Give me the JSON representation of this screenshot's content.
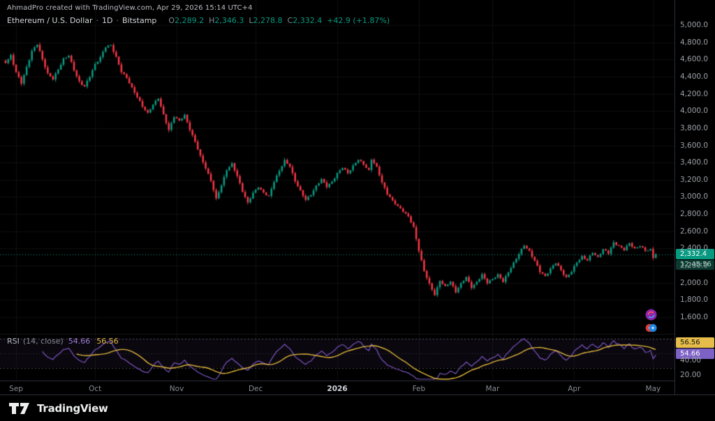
{
  "attribution": "AhmadPro created with TradingView.com, Apr 29, 2026 15:14 UTC+4",
  "symbol_bar": {
    "title": "Ethereum / U.S. Dollar",
    "separator": "·",
    "interval": "1D",
    "exchange": "Bitstamp",
    "ohlc": {
      "o_label": "O",
      "o": "2,289.2",
      "h_label": "H",
      "h": "2,346.3",
      "l_label": "L",
      "l": "2,278.8",
      "c_label": "C",
      "c": "2,332.4"
    },
    "change": "+42.9 (+1.87%)"
  },
  "price_scale": {
    "badge_price": "2,332.4",
    "countdown": "12:45:56",
    "tick_values": [
      5000,
      4800,
      4600,
      4400,
      4200,
      4000,
      3800,
      3600,
      3400,
      3200,
      3000,
      2800,
      2600,
      2400,
      2200,
      2000,
      1800,
      1600
    ]
  },
  "time_scale": {
    "ticks": [
      {
        "label": "Sep",
        "day": 0
      },
      {
        "label": "Oct",
        "day": 30
      },
      {
        "label": "Nov",
        "day": 61
      },
      {
        "label": "Dec",
        "day": 91
      },
      {
        "label": "2026",
        "day": 122,
        "year": true
      },
      {
        "label": "Feb",
        "day": 153
      },
      {
        "label": "Mar",
        "day": 181
      },
      {
        "label": "Apr",
        "day": 212
      },
      {
        "label": "May",
        "day": 242
      }
    ]
  },
  "rsi_pane": {
    "name": "RSI",
    "params": "(14, close)",
    "rsi_value": "54.66",
    "ma_value": "56.56",
    "badge_ma": "56.56",
    "badge_rsi": "54.66",
    "axis_ticks": [
      {
        "label": "40.00",
        "value": 40
      },
      {
        "label": "20.00",
        "value": 20
      }
    ],
    "levels": {
      "upper": 70,
      "middle": 50,
      "lower": 30
    }
  },
  "footer": {
    "brand": "TradingView"
  },
  "colors": {
    "up": "#089981",
    "down": "#F23645",
    "rsi_line": "#7E57C2",
    "rsi_ma": "#E2B93B",
    "grid": "rgba(255,255,255,0.055)",
    "band_fill": "rgba(126,87,194,0.08)",
    "band_line": "rgba(150,153,163,0.5)"
  },
  "chart_data": {
    "type": "candlestick",
    "title": "Ethereum / U.S. Dollar",
    "interval": "1D",
    "exchange": "Bitstamp",
    "visible_price_range": [
      1600,
      5000
    ],
    "price_tick_step": 200,
    "time_range_visible": [
      "Sep",
      "May"
    ],
    "current_price": 2332.4,
    "change": 42.9,
    "change_pct": 1.87,
    "last_candle": {
      "open": 2289.2,
      "high": 2346.3,
      "low": 2278.8,
      "close": 2332.4
    },
    "days_span": 248,
    "price_path": [
      [
        -4,
        4560
      ],
      [
        -2,
        4650
      ],
      [
        0,
        4450
      ],
      [
        2,
        4320
      ],
      [
        4,
        4510
      ],
      [
        6,
        4700
      ],
      [
        8,
        4775
      ],
      [
        10,
        4600
      ],
      [
        12,
        4440
      ],
      [
        14,
        4370
      ],
      [
        16,
        4480
      ],
      [
        18,
        4610
      ],
      [
        20,
        4650
      ],
      [
        22,
        4470
      ],
      [
        24,
        4340
      ],
      [
        26,
        4290
      ],
      [
        28,
        4400
      ],
      [
        30,
        4540
      ],
      [
        32,
        4630
      ],
      [
        34,
        4745
      ],
      [
        36,
        4760
      ],
      [
        38,
        4630
      ],
      [
        40,
        4460
      ],
      [
        42,
        4380
      ],
      [
        44,
        4270
      ],
      [
        46,
        4170
      ],
      [
        48,
        4050
      ],
      [
        50,
        3970
      ],
      [
        52,
        4080
      ],
      [
        54,
        4150
      ],
      [
        56,
        3950
      ],
      [
        58,
        3780
      ],
      [
        60,
        3940
      ],
      [
        62,
        3880
      ],
      [
        64,
        3950
      ],
      [
        66,
        3790
      ],
      [
        68,
        3640
      ],
      [
        70,
        3470
      ],
      [
        72,
        3340
      ],
      [
        74,
        3190
      ],
      [
        76,
        2970
      ],
      [
        78,
        3140
      ],
      [
        80,
        3320
      ],
      [
        82,
        3380
      ],
      [
        84,
        3240
      ],
      [
        86,
        3070
      ],
      [
        88,
        2930
      ],
      [
        90,
        3040
      ],
      [
        92,
        3120
      ],
      [
        94,
        3050
      ],
      [
        96,
        3000
      ],
      [
        98,
        3180
      ],
      [
        100,
        3310
      ],
      [
        102,
        3420
      ],
      [
        104,
        3350
      ],
      [
        106,
        3190
      ],
      [
        108,
        3070
      ],
      [
        110,
        2960
      ],
      [
        112,
        3030
      ],
      [
        114,
        3130
      ],
      [
        116,
        3200
      ],
      [
        118,
        3120
      ],
      [
        120,
        3180
      ],
      [
        122,
        3270
      ],
      [
        124,
        3340
      ],
      [
        126,
        3280
      ],
      [
        128,
        3360
      ],
      [
        130,
        3430
      ],
      [
        132,
        3380
      ],
      [
        134,
        3310
      ],
      [
        135,
        3440
      ],
      [
        137,
        3340
      ],
      [
        139,
        3170
      ],
      [
        141,
        3040
      ],
      [
        143,
        2950
      ],
      [
        145,
        2890
      ],
      [
        147,
        2840
      ],
      [
        149,
        2770
      ],
      [
        151,
        2640
      ],
      [
        153,
        2380
      ],
      [
        155,
        2140
      ],
      [
        157,
        1980
      ],
      [
        159,
        1860
      ],
      [
        161,
        2030
      ],
      [
        163,
        1950
      ],
      [
        165,
        2010
      ],
      [
        167,
        1900
      ],
      [
        169,
        1990
      ],
      [
        171,
        2060
      ],
      [
        173,
        1950
      ],
      [
        175,
        2010
      ],
      [
        177,
        2090
      ],
      [
        179,
        2000
      ],
      [
        181,
        2050
      ],
      [
        183,
        2090
      ],
      [
        185,
        2010
      ],
      [
        187,
        2130
      ],
      [
        189,
        2230
      ],
      [
        191,
        2330
      ],
      [
        193,
        2440
      ],
      [
        195,
        2370
      ],
      [
        197,
        2250
      ],
      [
        199,
        2130
      ],
      [
        201,
        2080
      ],
      [
        203,
        2160
      ],
      [
        205,
        2230
      ],
      [
        207,
        2150
      ],
      [
        209,
        2060
      ],
      [
        211,
        2130
      ],
      [
        213,
        2240
      ],
      [
        215,
        2310
      ],
      [
        217,
        2260
      ],
      [
        219,
        2350
      ],
      [
        221,
        2300
      ],
      [
        223,
        2390
      ],
      [
        225,
        2340
      ],
      [
        227,
        2470
      ],
      [
        229,
        2430
      ],
      [
        231,
        2380
      ],
      [
        233,
        2460
      ],
      [
        235,
        2400
      ],
      [
        237,
        2430
      ],
      [
        239,
        2370
      ],
      [
        241,
        2390
      ],
      [
        243,
        2332.4
      ]
    ],
    "indicator": {
      "name": "RSI",
      "length": 14,
      "source": "close",
      "last_rsi": 54.66,
      "last_ma": 56.56,
      "bands": [
        70,
        30
      ]
    }
  }
}
